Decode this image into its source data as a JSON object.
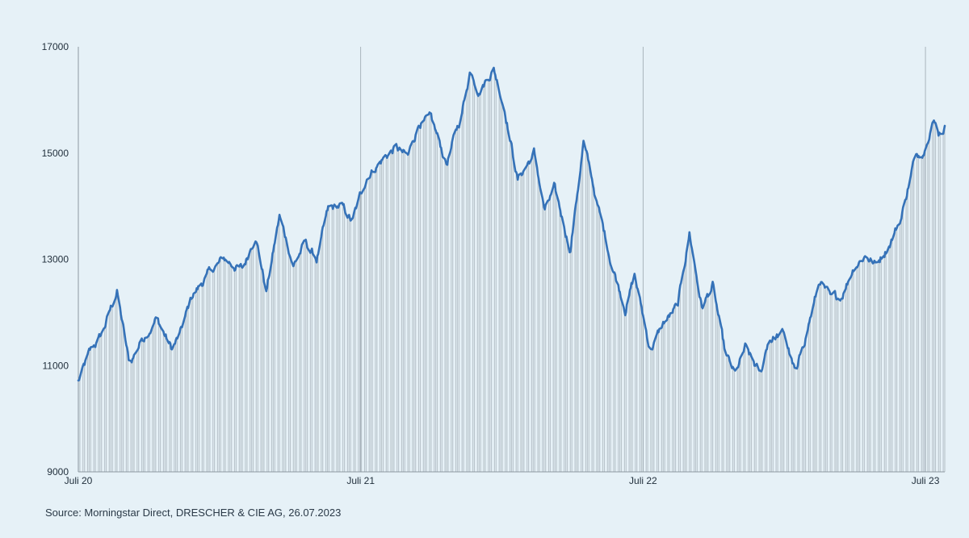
{
  "source": "Source: Morningstar Direct, DRESCHER & CIE AG, 26.07.2023",
  "colors": {
    "background": "#e6f1f7",
    "line": "#3572b8",
    "bars": "#b9c4cb"
  },
  "chart_data": {
    "type": "line",
    "title": "",
    "xlabel": "",
    "ylabel": "",
    "ylim": [
      9000,
      17000
    ],
    "yticks": [
      9000,
      11000,
      13000,
      15000,
      17000
    ],
    "xlim": [
      "2020-07-01",
      "2023-07-26"
    ],
    "xticks": [
      {
        "date": "2020-07-01",
        "label": "Juli 20"
      },
      {
        "date": "2021-07-01",
        "label": "Juli 21"
      },
      {
        "date": "2022-07-01",
        "label": "Juli 22"
      },
      {
        "date": "2023-07-01",
        "label": "Juli 23"
      }
    ],
    "grid": "vertical",
    "legend": "none",
    "series": [
      {
        "values_x": [
          "2020-07-01",
          "2020-07-15",
          "2020-08-01",
          "2020-08-20",
          "2020-09-05",
          "2020-09-21",
          "2020-10-10",
          "2020-10-30",
          "2020-11-10",
          "2020-11-25",
          "2020-12-15",
          "2021-01-05",
          "2021-01-30",
          "2021-02-15",
          "2021-03-01",
          "2021-03-18",
          "2021-04-05",
          "2021-04-20",
          "2021-05-05",
          "2021-05-20",
          "2021-06-05",
          "2021-06-20",
          "2021-07-10",
          "2021-07-30",
          "2021-08-15",
          "2021-08-31",
          "2021-09-15",
          "2021-09-30",
          "2021-10-20",
          "2021-11-08",
          "2021-11-20",
          "2021-12-01",
          "2021-12-20",
          "2022-01-04",
          "2022-01-20",
          "2022-02-10",
          "2022-02-24",
          "2022-03-08",
          "2022-03-29",
          "2022-04-15",
          "2022-05-05",
          "2022-05-20",
          "2022-06-08",
          "2022-06-20",
          "2022-07-10",
          "2022-07-28",
          "2022-08-15",
          "2022-08-30",
          "2022-09-15",
          "2022-09-29",
          "2022-10-15",
          "2022-10-28",
          "2022-11-10",
          "2022-11-30",
          "2022-12-10",
          "2022-12-30",
          "2023-01-15",
          "2023-01-31",
          "2023-02-15",
          "2023-03-01",
          "2023-03-14",
          "2023-03-31",
          "2023-04-15",
          "2023-04-28",
          "2023-05-15",
          "2023-05-31",
          "2023-06-15",
          "2023-06-30",
          "2023-07-10",
          "2023-07-18",
          "2023-07-26"
        ],
        "values": [
          10700,
          11200,
          11600,
          12400,
          11000,
          11500,
          11900,
          11300,
          11600,
          12300,
          12700,
          13000,
          12800,
          13500,
          12400,
          13800,
          12900,
          13300,
          13000,
          13900,
          14000,
          13700,
          14600,
          14900,
          15100,
          14900,
          15600,
          15600,
          14800,
          15700,
          16600,
          16200,
          16600,
          15800,
          14500,
          15000,
          13900,
          14300,
          13200,
          15200,
          13900,
          13000,
          12100,
          12700,
          11300,
          11800,
          12100,
          13500,
          12100,
          12500,
          11200,
          10800,
          11300,
          10800,
          11500,
          11600,
          10800,
          11800,
          12600,
          12200,
          12300,
          12900,
          13100,
          12900,
          13300,
          13800,
          14800,
          15100,
          15700,
          15400,
          15500
        ]
      }
    ]
  }
}
